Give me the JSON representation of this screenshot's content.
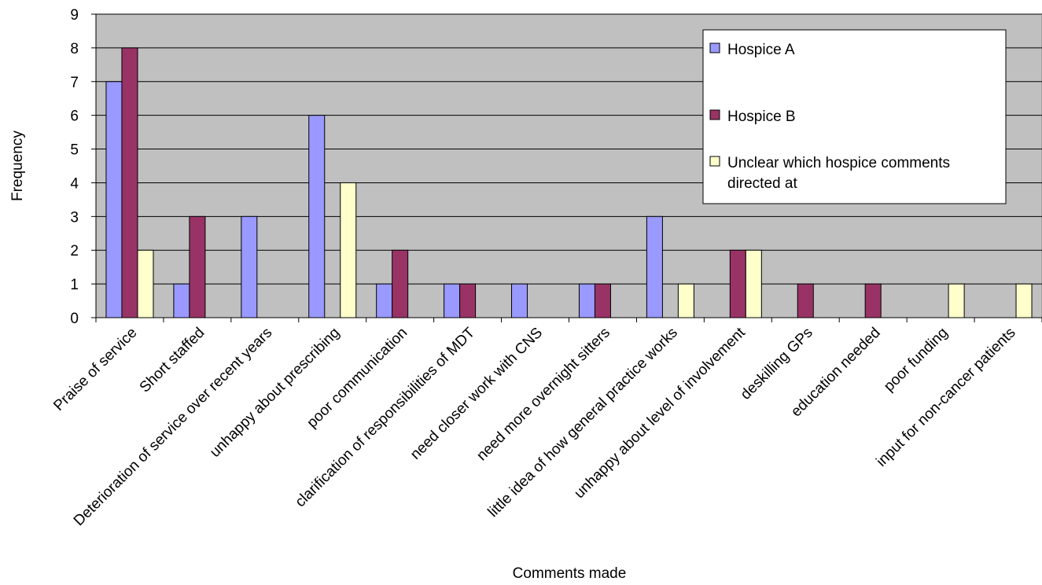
{
  "chart_data": {
    "type": "bar",
    "title": "",
    "xlabel": "Comments made",
    "ylabel": "Frequency",
    "ylim": [
      0,
      9
    ],
    "yticks": [
      0,
      1,
      2,
      3,
      4,
      5,
      6,
      7,
      8,
      9
    ],
    "grid": true,
    "legend_position": "top-right",
    "categories": [
      "Praise of service",
      "Short staffed",
      "Deterioration of service over recent years",
      "unhappy about prescribing",
      "poor communication",
      "clarification of responsibilities of MDT",
      "need closer work with CNS",
      "need more overnight sitters",
      "little idea of how general practice works",
      "unhappy about level of involvement",
      "deskilling GPs",
      "education needed",
      "poor funding",
      "input for non-cancer patients"
    ],
    "series": [
      {
        "name": "Hospice A",
        "color": "#9999ff",
        "values": [
          7,
          1,
          3,
          6,
          1,
          1,
          1,
          1,
          3,
          0,
          0,
          0,
          0,
          0
        ]
      },
      {
        "name": "Hospice B",
        "color": "#993366",
        "values": [
          8,
          3,
          0,
          0,
          2,
          1,
          0,
          1,
          0,
          2,
          1,
          1,
          0,
          0
        ]
      },
      {
        "name": "Unclear which hospice comments directed at",
        "color": "#ffffcc",
        "values": [
          2,
          0,
          0,
          4,
          0,
          0,
          0,
          0,
          1,
          2,
          0,
          0,
          1,
          1
        ]
      }
    ],
    "legend_lines": [
      [
        "Hospice A"
      ],
      [
        "Hospice B"
      ],
      [
        "Unclear which hospice comments",
        "directed at"
      ]
    ],
    "plot_background": "#c0c0c0"
  }
}
